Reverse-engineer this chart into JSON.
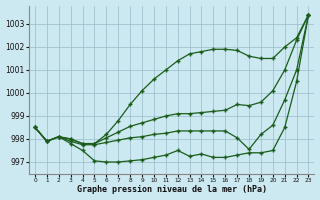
{
  "title": "Graphe pression niveau de la mer (hPa)",
  "background_color": "#cce8f0",
  "grid_color": "#99bbcc",
  "line_color": "#1a5c1a",
  "x_labels": [
    "0",
    "1",
    "2",
    "3",
    "4",
    "5",
    "6",
    "7",
    "8",
    "9",
    "10",
    "11",
    "12",
    "13",
    "14",
    "15",
    "16",
    "17",
    "18",
    "19",
    "20",
    "21",
    "22",
    "23"
  ],
  "ylim": [
    996.5,
    1003.8
  ],
  "yticks": [
    997,
    998,
    999,
    1000,
    1001,
    1002,
    1003
  ],
  "series": [
    [
      998.5,
      997.9,
      998.1,
      997.8,
      997.5,
      997.05,
      997.0,
      997.0,
      997.05,
      997.1,
      997.2,
      997.3,
      997.5,
      997.25,
      997.35,
      997.2,
      997.2,
      997.3,
      997.4,
      997.4,
      997.5,
      998.5,
      1000.5,
      1003.4
    ],
    [
      998.5,
      997.9,
      998.1,
      997.9,
      997.75,
      997.75,
      997.85,
      997.95,
      998.05,
      998.1,
      998.2,
      998.25,
      998.35,
      998.35,
      998.35,
      998.35,
      998.35,
      998.05,
      997.55,
      998.2,
      998.6,
      999.7,
      1001.0,
      1003.4
    ],
    [
      998.5,
      997.9,
      998.1,
      998.0,
      997.8,
      997.8,
      998.05,
      998.3,
      998.55,
      998.7,
      998.85,
      999.0,
      999.1,
      999.1,
      999.15,
      999.2,
      999.25,
      999.5,
      999.45,
      999.6,
      1000.1,
      1001.0,
      1002.3,
      1003.4
    ],
    [
      998.5,
      997.9,
      998.1,
      998.0,
      997.8,
      997.8,
      998.2,
      998.8,
      999.5,
      1000.1,
      1000.6,
      1001.0,
      1001.4,
      1001.7,
      1001.8,
      1001.9,
      1001.9,
      1001.85,
      1001.6,
      1001.5,
      1001.5,
      1002.0,
      1002.4,
      1003.4
    ]
  ]
}
